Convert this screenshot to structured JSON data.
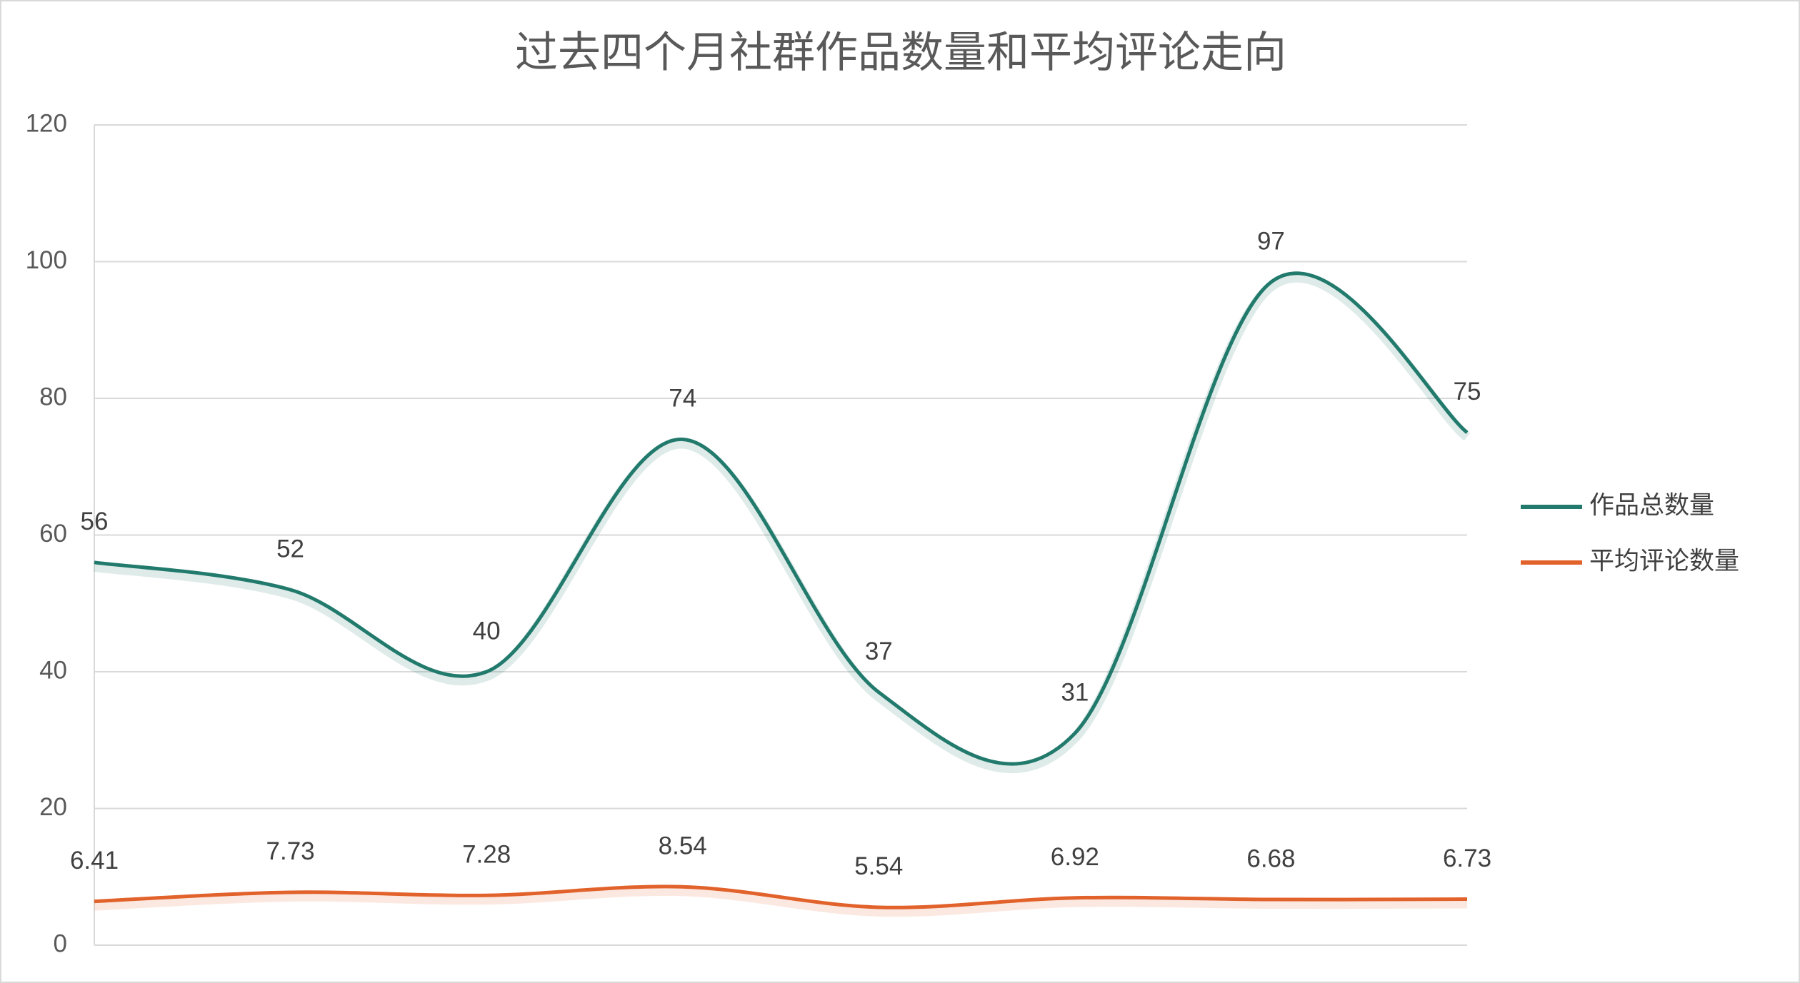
{
  "chart_data": {
    "type": "line",
    "title": "过去四个月社群作品数量和平均评论走向",
    "categories": [
      null,
      null,
      null,
      null,
      null,
      null,
      null,
      null
    ],
    "series": [
      {
        "name": "作品总数量",
        "color": "#217a6c",
        "values": [
          56,
          52,
          40,
          74,
          37,
          31,
          97,
          75
        ]
      },
      {
        "name": "平均评论数量",
        "color": "#e2622c",
        "values": [
          6.41,
          7.73,
          7.28,
          8.54,
          5.54,
          6.92,
          6.68,
          6.73
        ]
      }
    ],
    "ylim": [
      0,
      120
    ],
    "yticks": [
      0,
      20,
      40,
      60,
      80,
      100,
      120
    ],
    "grid": true,
    "legend": "right",
    "smooth": true
  }
}
